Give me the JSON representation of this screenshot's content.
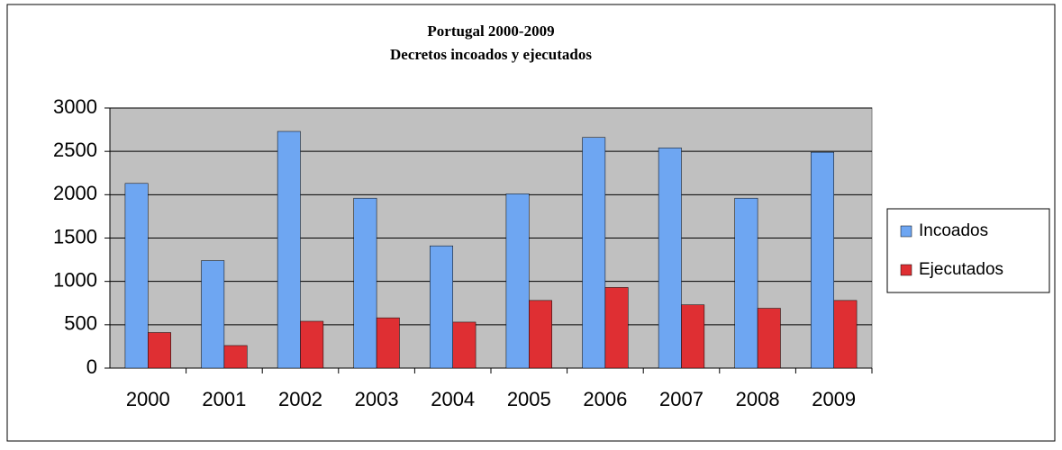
{
  "chart_data": {
    "type": "bar",
    "title": "Portugal 2000-2009",
    "subtitle": "Decretos incoados y ejecutados",
    "categories": [
      "2000",
      "2001",
      "2002",
      "2003",
      "2004",
      "2005",
      "2006",
      "2007",
      "2008",
      "2009"
    ],
    "series": [
      {
        "name": "Incoados",
        "color": "#6ea6f2",
        "values": [
          2130,
          1240,
          2730,
          1960,
          1410,
          2010,
          2660,
          2540,
          1960,
          2490
        ]
      },
      {
        "name": "Ejecutados",
        "color": "#df2f33",
        "values": [
          410,
          260,
          540,
          580,
          530,
          780,
          930,
          730,
          690,
          780
        ]
      }
    ],
    "ylim": [
      0,
      3000
    ],
    "yticks": [
      0,
      500,
      1000,
      1500,
      2000,
      2500,
      3000
    ],
    "grid": true,
    "legend": "right"
  }
}
